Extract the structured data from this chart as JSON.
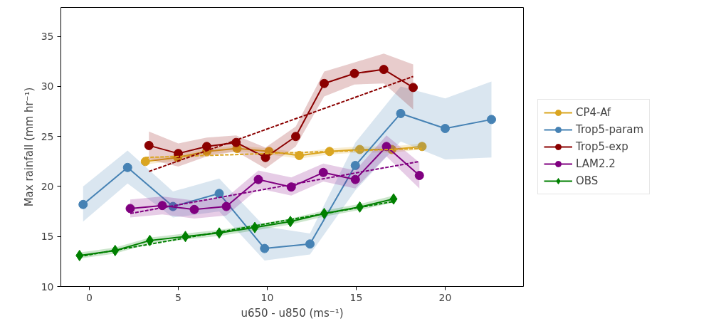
{
  "chart_data": {
    "type": "line",
    "xlabel": "u650 - u850 (ms⁻¹)",
    "ylabel": "Max rainfall (mm hr⁻¹)",
    "xlim": [
      -1.6,
      24.4
    ],
    "ylim": [
      10,
      37.9
    ],
    "xticks": [
      0,
      5,
      10,
      15,
      20
    ],
    "yticks": [
      10,
      15,
      20,
      25,
      30,
      35
    ],
    "grid": false,
    "legend": "right",
    "line_style": "solid",
    "series": [
      {
        "name": "CP4-Af",
        "color": "#daa520",
        "marker": "circle",
        "x": [
          3.15,
          4.97,
          6.6,
          8.3,
          10.1,
          11.8,
          13.5,
          15.2,
          17.0,
          18.7
        ],
        "values": [
          22.5,
          22.9,
          23.5,
          23.8,
          23.5,
          23.1,
          23.5,
          23.7,
          23.7,
          24.0
        ],
        "lower": [
          22.2,
          22.6,
          23.2,
          23.5,
          23.2,
          22.8,
          23.2,
          23.4,
          23.4,
          23.7
        ],
        "upper": [
          22.8,
          23.2,
          23.8,
          24.1,
          23.8,
          23.4,
          23.8,
          24.0,
          24.0,
          24.3
        ]
      },
      {
        "name": "Trop5-param",
        "color": "#4682b4",
        "marker": "circle",
        "x": [
          -0.35,
          2.15,
          4.7,
          7.3,
          9.85,
          12.4,
          14.95,
          17.5,
          20.0,
          22.6
        ],
        "values": [
          18.2,
          21.9,
          18.0,
          19.3,
          13.8,
          14.25,
          22.1,
          27.3,
          25.8,
          26.7
        ],
        "lower": [
          16.5,
          20.3,
          16.9,
          17.5,
          12.6,
          13.2,
          19.6,
          24.5,
          22.7,
          22.9
        ],
        "upper": [
          20.0,
          23.6,
          19.5,
          20.8,
          16.0,
          15.3,
          24.4,
          30.0,
          28.8,
          30.5
        ]
      },
      {
        "name": "Trop5-exp",
        "color": "#8b0000",
        "marker": "circle",
        "x": [
          3.35,
          5.0,
          6.6,
          8.25,
          9.9,
          11.6,
          13.2,
          14.9,
          16.55,
          18.2
        ],
        "values": [
          24.1,
          23.3,
          24.0,
          24.4,
          22.9,
          25.0,
          30.3,
          31.3,
          31.7,
          29.9
        ],
        "lower": [
          22.7,
          22.0,
          23.0,
          23.5,
          21.8,
          24.0,
          29.0,
          30.2,
          30.3,
          27.7
        ],
        "upper": [
          25.5,
          24.3,
          24.9,
          25.1,
          23.9,
          26.0,
          31.5,
          32.4,
          33.3,
          32.2
        ]
      },
      {
        "name": "LAM2.2",
        "color": "#800080",
        "marker": "circle",
        "x": [
          2.3,
          4.1,
          5.9,
          7.7,
          9.5,
          11.35,
          13.15,
          14.95,
          16.7,
          18.55
        ],
        "values": [
          17.8,
          18.1,
          17.7,
          18.0,
          20.7,
          19.95,
          21.4,
          20.7,
          24.0,
          21.1
        ],
        "lower": [
          16.9,
          17.2,
          16.8,
          17.1,
          19.8,
          19.1,
          20.5,
          19.8,
          23.0,
          19.8
        ],
        "upper": [
          18.7,
          19.0,
          18.6,
          18.9,
          21.6,
          20.9,
          22.3,
          21.6,
          25.1,
          22.4
        ]
      },
      {
        "name": "OBS",
        "color": "#008000",
        "marker": "diamond",
        "x": [
          -0.55,
          1.45,
          3.4,
          5.4,
          7.3,
          9.3,
          11.3,
          13.2,
          15.2,
          17.1
        ],
        "values": [
          13.1,
          13.6,
          14.6,
          15.0,
          15.35,
          15.9,
          16.5,
          17.3,
          17.95,
          18.75
        ],
        "lower": [
          12.8,
          13.3,
          14.3,
          14.7,
          15.05,
          15.6,
          16.2,
          17.0,
          17.65,
          18.4
        ],
        "upper": [
          13.4,
          13.9,
          14.9,
          15.3,
          15.65,
          16.2,
          16.8,
          17.6,
          18.25,
          19.1
        ]
      },
      {
        "type": "line",
        "color": "#daa520",
        "line_style": "dashed",
        "marker": "none",
        "x": [
          3.15,
          18.7
        ],
        "values": [
          22.9,
          23.8
        ]
      },
      {
        "type": "line",
        "color": "#8b0000",
        "line_style": "dashed",
        "marker": "none",
        "x": [
          3.35,
          18.2
        ],
        "values": [
          21.5,
          31.0
        ]
      },
      {
        "type": "line",
        "color": "#800080",
        "line_style": "dashed",
        "marker": "none",
        "x": [
          2.3,
          18.55
        ],
        "values": [
          17.3,
          22.5
        ]
      },
      {
        "type": "line",
        "color": "#008000",
        "line_style": "dashed",
        "marker": "none",
        "x": [
          -0.55,
          17.1
        ],
        "values": [
          13.0,
          18.5
        ]
      }
    ]
  }
}
